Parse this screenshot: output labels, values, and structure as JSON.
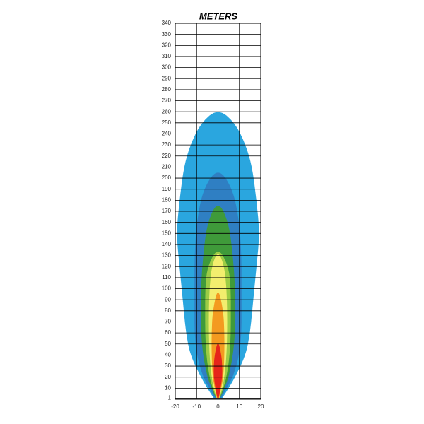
{
  "chart_data": {
    "type": "beam",
    "title": "METERS",
    "xlim": [
      -20,
      20
    ],
    "ylim": [
      0,
      340
    ],
    "xticks": [
      -20,
      -10,
      0,
      10,
      20
    ],
    "yticks": [
      1,
      10,
      20,
      30,
      40,
      50,
      60,
      70,
      80,
      90,
      100,
      110,
      120,
      130,
      140,
      150,
      160,
      170,
      180,
      190,
      200,
      210,
      220,
      230,
      240,
      250,
      260,
      270,
      280,
      290,
      300,
      310,
      320,
      330,
      340
    ],
    "grid": true,
    "contours": [
      {
        "color": "#2aa6df",
        "y": [
          1,
          10,
          20,
          40,
          60,
          80,
          100,
          120,
          150,
          180,
          210,
          230,
          250,
          263
        ],
        "half_width": [
          2,
          5,
          8,
          13,
          15,
          16,
          17,
          18,
          19.5,
          18,
          16,
          13,
          8,
          0
        ]
      },
      {
        "color": "#2f7fc3",
        "y": [
          1,
          10,
          20,
          40,
          60,
          80,
          100,
          130,
          160,
          190,
          210
        ],
        "half_width": [
          1.5,
          4,
          7,
          10,
          11,
          11,
          11,
          11,
          10,
          7,
          0
        ]
      },
      {
        "color": "#3f9a3a",
        "y": [
          1,
          10,
          20,
          40,
          60,
          80,
          100,
          130,
          160,
          180
        ],
        "half_width": [
          1,
          3,
          5,
          7,
          8,
          8,
          8,
          7,
          5,
          0
        ]
      },
      {
        "color": "#9ccc45",
        "y": [
          1,
          10,
          20,
          40,
          60,
          80,
          100,
          120,
          138
        ],
        "half_width": [
          0.8,
          2.5,
          4,
          5.5,
          6,
          6,
          6,
          5,
          0
        ]
      },
      {
        "color": "#f3ee6e",
        "y": [
          1,
          10,
          20,
          40,
          60,
          80,
          100,
          120,
          135
        ],
        "half_width": [
          0.6,
          2,
          3,
          4,
          4.3,
          4.3,
          4,
          3,
          0
        ]
      },
      {
        "color": "#f39a20",
        "y": [
          1,
          10,
          20,
          40,
          60,
          80,
          102
        ],
        "half_width": [
          0.5,
          1.5,
          2.5,
          3,
          3,
          2.5,
          0
        ]
      },
      {
        "color": "#e6251b",
        "y": [
          1,
          10,
          20,
          30,
          40,
          54
        ],
        "half_width": [
          0.3,
          1.2,
          2,
          2,
          1.6,
          0
        ]
      }
    ]
  }
}
